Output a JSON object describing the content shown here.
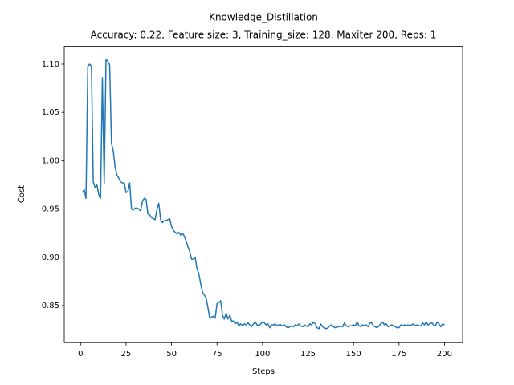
{
  "chart_data": {
    "type": "line",
    "title": "Knowledge_Distillation",
    "subtitle": "Accuracy: 0.22, Feature size: 3, Training_size: 128, Maxiter 200, Reps: 1",
    "x_label": "Steps",
    "y_label": "Cost",
    "xlim": [
      -8.95,
      209.95
    ],
    "ylim": [
      0.8116,
      1.1186
    ],
    "xticks": [
      0,
      25,
      50,
      75,
      100,
      125,
      150,
      175,
      200
    ],
    "yticks": [
      {
        "value": 0.85,
        "label": "0.85"
      },
      {
        "value": 0.9,
        "label": "0.90"
      },
      {
        "value": 0.95,
        "label": "0.95"
      },
      {
        "value": 1.0,
        "label": "1.00"
      },
      {
        "value": 1.05,
        "label": "1.05"
      },
      {
        "value": 1.1,
        "label": "1.10"
      }
    ],
    "x": [
      1,
      2,
      3,
      4,
      5,
      6,
      7,
      8,
      9,
      10,
      11,
      12,
      13,
      14,
      15,
      16,
      17,
      18,
      19,
      20,
      21,
      22,
      23,
      24,
      25,
      26,
      27,
      28,
      29,
      30,
      31,
      32,
      33,
      34,
      35,
      36,
      37,
      38,
      39,
      40,
      41,
      42,
      43,
      44,
      45,
      46,
      47,
      48,
      49,
      50,
      51,
      52,
      53,
      54,
      55,
      56,
      57,
      58,
      59,
      60,
      61,
      62,
      63,
      64,
      65,
      66,
      67,
      68,
      69,
      70,
      71,
      72,
      73,
      74,
      75,
      76,
      77,
      78,
      79,
      80,
      81,
      82,
      83,
      84,
      85,
      86,
      87,
      88,
      89,
      90,
      91,
      92,
      93,
      94,
      95,
      96,
      97,
      98,
      99,
      100,
      101,
      102,
      103,
      104,
      105,
      106,
      107,
      108,
      109,
      110,
      111,
      112,
      113,
      114,
      115,
      116,
      117,
      118,
      119,
      120,
      121,
      122,
      123,
      124,
      125,
      126,
      127,
      128,
      129,
      130,
      131,
      132,
      133,
      134,
      135,
      136,
      137,
      138,
      139,
      140,
      141,
      142,
      143,
      144,
      145,
      146,
      147,
      148,
      149,
      150,
      151,
      152,
      153,
      154,
      155,
      156,
      157,
      158,
      159,
      160,
      161,
      162,
      163,
      164,
      165,
      166,
      167,
      168,
      169,
      170,
      171,
      172,
      173,
      174,
      175,
      176,
      177,
      178,
      179,
      180,
      181,
      182,
      183,
      184,
      185,
      186,
      187,
      188,
      189,
      190,
      191,
      192,
      193,
      194,
      195,
      196,
      197,
      198,
      199,
      200
    ],
    "series": [
      {
        "color": "#1f77b4",
        "values": [
          0.967,
          0.97,
          0.961,
          1.098,
          1.1,
          1.098,
          0.978,
          0.972,
          0.975,
          0.965,
          0.961,
          1.086,
          0.976,
          1.105,
          1.103,
          1.099,
          1.018,
          1.01,
          0.993,
          0.985,
          0.982,
          0.978,
          0.977,
          0.977,
          0.967,
          0.968,
          0.977,
          0.95,
          0.949,
          0.951,
          0.951,
          0.95,
          0.948,
          0.958,
          0.961,
          0.96,
          0.945,
          0.944,
          0.941,
          0.94,
          0.939,
          0.95,
          0.956,
          0.939,
          0.936,
          0.938,
          0.938,
          0.939,
          0.94,
          0.932,
          0.928,
          0.926,
          0.924,
          0.926,
          0.923,
          0.925,
          0.922,
          0.917,
          0.911,
          0.906,
          0.898,
          0.898,
          0.9,
          0.888,
          0.883,
          0.873,
          0.864,
          0.861,
          0.858,
          0.848,
          0.837,
          0.838,
          0.839,
          0.837,
          0.852,
          0.853,
          0.855,
          0.84,
          0.836,
          0.842,
          0.836,
          0.84,
          0.834,
          0.834,
          0.831,
          0.833,
          0.829,
          0.831,
          0.829,
          0.831,
          0.83,
          0.832,
          0.83,
          0.828,
          0.831,
          0.833,
          0.83,
          0.829,
          0.831,
          0.833,
          0.832,
          0.83,
          0.831,
          0.827,
          0.83,
          0.83,
          0.831,
          0.829,
          0.83,
          0.83,
          0.829,
          0.83,
          0.828,
          0.827,
          0.828,
          0.829,
          0.828,
          0.83,
          0.829,
          0.831,
          0.829,
          0.828,
          0.83,
          0.829,
          0.828,
          0.831,
          0.83,
          0.833,
          0.831,
          0.827,
          0.826,
          0.831,
          0.828,
          0.827,
          0.826,
          0.827,
          0.829,
          0.83,
          0.828,
          0.827,
          0.828,
          0.828,
          0.829,
          0.828,
          0.832,
          0.829,
          0.828,
          0.829,
          0.829,
          0.83,
          0.829,
          0.833,
          0.829,
          0.828,
          0.83,
          0.829,
          0.83,
          0.828,
          0.832,
          0.832,
          0.829,
          0.828,
          0.827,
          0.829,
          0.831,
          0.833,
          0.83,
          0.831,
          0.828,
          0.829,
          0.83,
          0.829,
          0.828,
          0.827,
          0.827,
          0.83,
          0.829,
          0.83,
          0.829,
          0.83,
          0.829,
          0.83,
          0.831,
          0.829,
          0.83,
          0.829,
          0.829,
          0.832,
          0.83,
          0.833,
          0.83,
          0.831,
          0.832,
          0.83,
          0.829,
          0.833,
          0.831,
          0.828,
          0.831,
          0.83
        ]
      }
    ]
  }
}
